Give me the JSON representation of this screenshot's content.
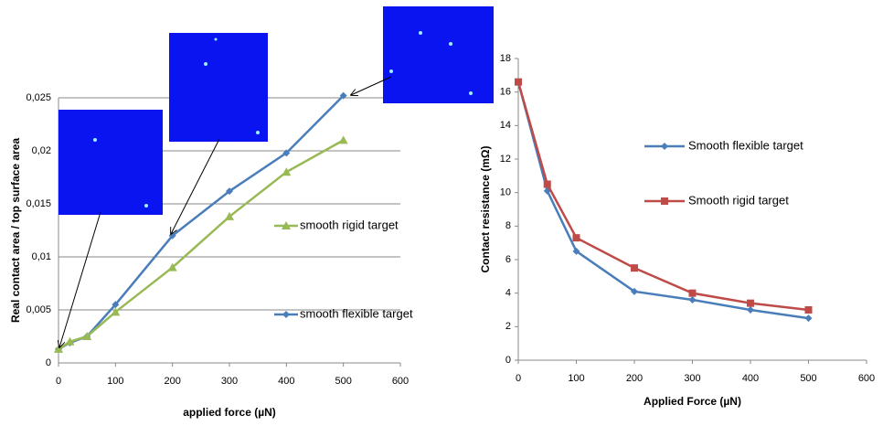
{
  "chart_data": [
    {
      "type": "line",
      "xlabel": "applied force (µN)",
      "ylabel": "Real contact area / top surface area",
      "xlim": [
        0,
        600
      ],
      "xticks": [
        0,
        100,
        200,
        300,
        400,
        500,
        600
      ],
      "ylim": [
        0,
        0.025
      ],
      "yticks": [
        0,
        {
          "value": 0.005,
          "label": "0,005"
        },
        {
          "value": 0.01,
          "label": "0,01"
        },
        {
          "value": 0.015,
          "label": "0,015"
        },
        {
          "value": 0.02,
          "label": "0,02"
        },
        {
          "value": 0.025,
          "label": "0,025"
        }
      ],
      "grid": true,
      "series": [
        {
          "name": "smooth flexible target",
          "color": "#4a7ebb",
          "marker": "diamond",
          "x": [
            0,
            20,
            50,
            100,
            200,
            300,
            400,
            500
          ],
          "values": [
            0.0013,
            0.0019,
            0.0025,
            0.0055,
            0.012,
            0.0162,
            0.0198,
            0.0252
          ]
        },
        {
          "name": "smooth rigid target",
          "color": "#98b954",
          "marker": "triangle",
          "x": [
            0,
            20,
            50,
            100,
            200,
            300,
            400,
            500
          ],
          "values": [
            0.0013,
            0.002,
            0.0025,
            0.0048,
            0.009,
            0.0138,
            0.018,
            0.021
          ]
        }
      ]
    },
    {
      "type": "line",
      "xlabel": "Applied Force (µN)",
      "ylabel": "Contact resistance (mΩ)",
      "xlim": [
        0,
        600
      ],
      "xticks": [
        0,
        100,
        200,
        300,
        400,
        500,
        600
      ],
      "ylim": [
        0,
        18
      ],
      "yticks": [
        0,
        2,
        4,
        6,
        8,
        10,
        12,
        14,
        16,
        18
      ],
      "grid": false,
      "series": [
        {
          "name": "Smooth flexible target",
          "color": "#4a7ebb",
          "marker": "diamond",
          "x": [
            0,
            50,
            100,
            200,
            300,
            400,
            500
          ],
          "values": [
            16.6,
            10.1,
            6.5,
            4.1,
            3.6,
            3.0,
            2.5
          ]
        },
        {
          "name": "Smooth rigid target",
          "color": "#be4b48",
          "marker": "square",
          "x": [
            0,
            50,
            100,
            200,
            300,
            400,
            500
          ],
          "values": [
            16.6,
            10.5,
            7.3,
            5.5,
            4.0,
            3.4,
            3.0
          ]
        }
      ]
    }
  ]
}
